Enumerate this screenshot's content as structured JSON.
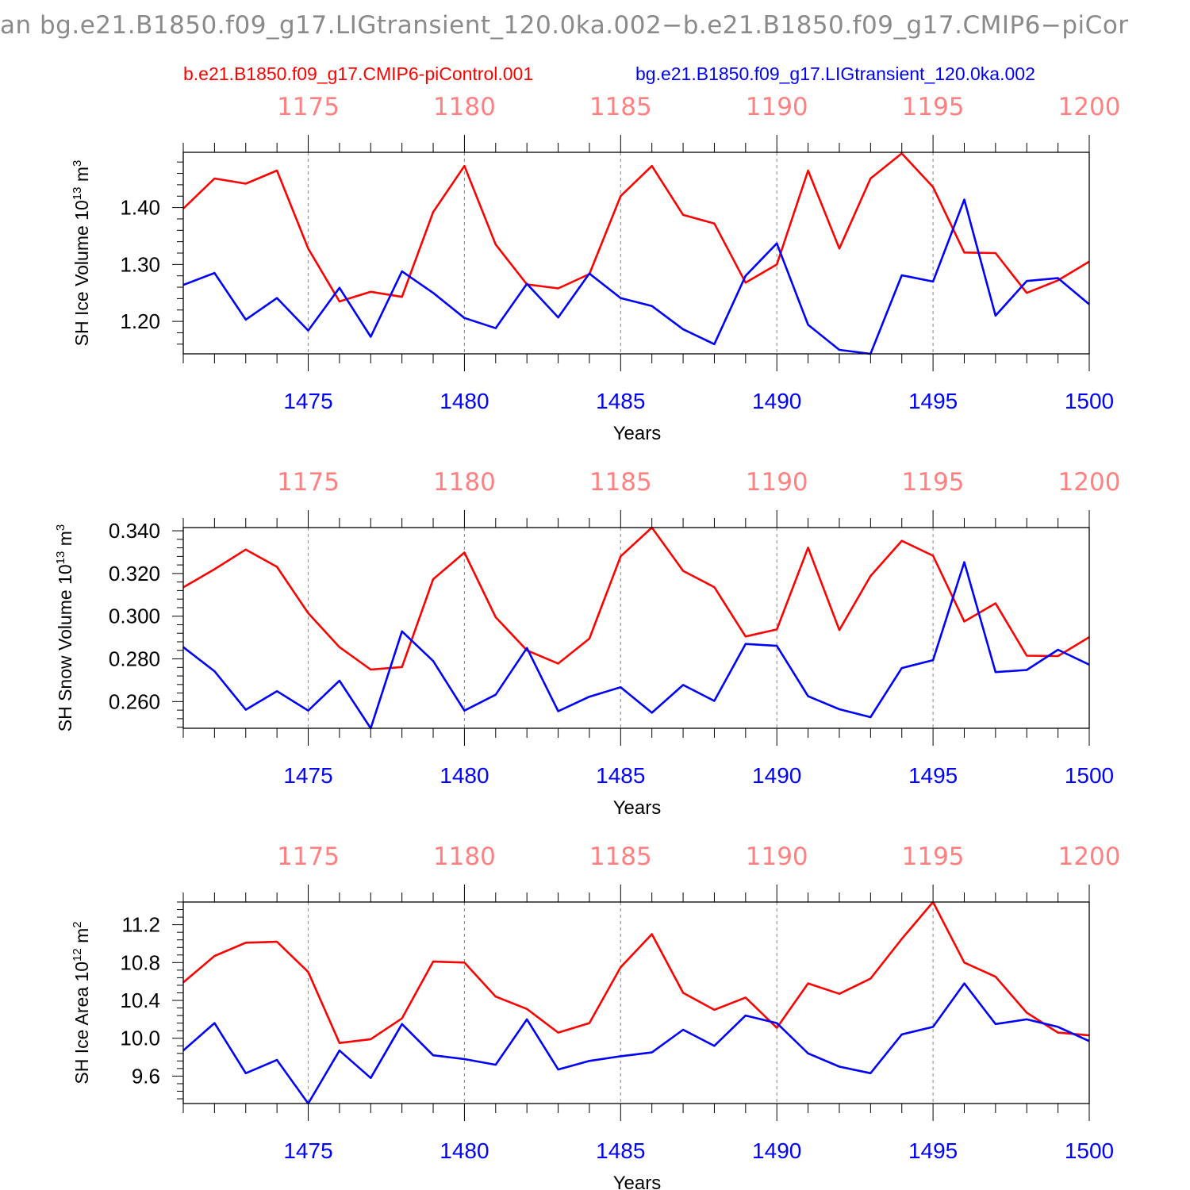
{
  "page_title": "an bg.e21.B1850.f09_g17.LIGtransient_120.0ka.002−b.e21.B1850.f09_g17.CMIP6−piCor",
  "legend": {
    "red_label": "b.e21.B1850.f09_g17.CMIP6-piControl.001",
    "blue_label": "bg.e21.B1850.f09_g17.LIGtransient_120.0ka.002"
  },
  "colors": {
    "red": "#ff0000",
    "blue": "#0000ff",
    "top_ticks": "#ff8080",
    "bottom_ticks": "#0000ff",
    "grid": "#999999"
  },
  "chart_data": [
    {
      "type": "line",
      "ylabel": "SH Ice Volume 10^13 m^3",
      "ylabel_main": "SH Ice Volume 10",
      "ylabel_exp": "13",
      "ylabel_unit": "m",
      "ylabel_unit_exp": "3",
      "xlabel": "Years",
      "xlim": [
        1471,
        1500
      ],
      "ylim": [
        1.143,
        1.497
      ],
      "yticks": [
        1.2,
        1.3,
        1.4
      ],
      "ytick_labels": [
        "1.20",
        "1.30",
        "1.40"
      ],
      "ymajor_step": 0.1,
      "yminor_step": 0.02,
      "xticks_bottom": [
        "1475",
        "1480",
        "1485",
        "1490",
        "1495",
        "1500"
      ],
      "xticks_top": [
        "1175",
        "1180",
        "1185",
        "1190",
        "1195",
        "1200"
      ],
      "x": [
        1471,
        1472,
        1473,
        1474,
        1475,
        1476,
        1477,
        1478,
        1479,
        1480,
        1481,
        1482,
        1483,
        1484,
        1485,
        1486,
        1487,
        1488,
        1489,
        1490,
        1491,
        1492,
        1493,
        1494,
        1495,
        1496,
        1497,
        1498,
        1499,
        1500
      ],
      "series": [
        {
          "name": "b.e21.B1850.f09_g17.CMIP6-piControl.001",
          "color": "#ff0000",
          "values": [
            1.398,
            1.451,
            1.442,
            1.465,
            1.328,
            1.235,
            1.252,
            1.243,
            1.392,
            1.473,
            1.335,
            1.265,
            1.258,
            1.283,
            1.42,
            1.473,
            1.387,
            1.372,
            1.268,
            1.3,
            1.465,
            1.328,
            1.451,
            1.495,
            1.436,
            1.321,
            1.32,
            1.25,
            1.272,
            1.305
          ]
        },
        {
          "name": "bg.e21.B1850.f09_g17.LIGtransient_120.0ka.002",
          "color": "#0000ff",
          "values": [
            1.264,
            1.285,
            1.203,
            1.241,
            1.184,
            1.259,
            1.173,
            1.288,
            1.25,
            1.206,
            1.188,
            1.266,
            1.207,
            1.284,
            1.241,
            1.227,
            1.186,
            1.16,
            1.28,
            1.337,
            1.194,
            1.15,
            1.143,
            1.281,
            1.27,
            1.414,
            1.21,
            1.271,
            1.276,
            1.23
          ]
        }
      ]
    },
    {
      "type": "line",
      "ylabel": "SH Snow Volume 10^13 m^3",
      "ylabel_main": "SH Snow Volume 10",
      "ylabel_exp": "13",
      "ylabel_unit": "m",
      "ylabel_unit_exp": "3",
      "xlabel": "Years",
      "xlim": [
        1471,
        1500
      ],
      "ylim": [
        0.2475,
        0.3415
      ],
      "yticks": [
        0.26,
        0.28,
        0.3,
        0.32,
        0.34
      ],
      "ytick_labels": [
        "0.260",
        "0.280",
        "0.300",
        "0.320",
        "0.340"
      ],
      "ymajor_step": 0.02,
      "yminor_step": 0.004,
      "xticks_bottom": [
        "1475",
        "1480",
        "1485",
        "1490",
        "1495",
        "1500"
      ],
      "xticks_top": [
        "1175",
        "1180",
        "1185",
        "1190",
        "1195",
        "1200"
      ],
      "x": [
        1471,
        1472,
        1473,
        1474,
        1475,
        1476,
        1477,
        1478,
        1479,
        1480,
        1481,
        1482,
        1483,
        1484,
        1485,
        1486,
        1487,
        1488,
        1489,
        1490,
        1491,
        1492,
        1493,
        1494,
        1495,
        1496,
        1497,
        1498,
        1499,
        1500
      ],
      "series": [
        {
          "name": "b.e21.B1850.f09_g17.CMIP6-piControl.001",
          "color": "#ff0000",
          "values": [
            0.3135,
            0.322,
            0.3312,
            0.3231,
            0.3014,
            0.2855,
            0.275,
            0.2762,
            0.3173,
            0.3298,
            0.2995,
            0.284,
            0.2778,
            0.2895,
            0.328,
            0.3415,
            0.3212,
            0.3136,
            0.2905,
            0.2938,
            0.3321,
            0.2935,
            0.3188,
            0.3353,
            0.3283,
            0.2975,
            0.306,
            0.2815,
            0.2813,
            0.2902
          ]
        },
        {
          "name": "bg.e21.B1850.f09_g17.LIGtransient_120.0ka.002",
          "color": "#0000ff",
          "values": [
            0.2855,
            0.2742,
            0.2562,
            0.2649,
            0.2558,
            0.2698,
            0.2475,
            0.2929,
            0.279,
            0.2558,
            0.2632,
            0.2851,
            0.2555,
            0.2623,
            0.2667,
            0.2548,
            0.2678,
            0.2603,
            0.287,
            0.2861,
            0.2625,
            0.2564,
            0.2527,
            0.2757,
            0.2794,
            0.3253,
            0.2738,
            0.2748,
            0.2843,
            0.2773
          ]
        }
      ]
    },
    {
      "type": "line",
      "ylabel": "SH Ice Area 10^12 m^2",
      "ylabel_main": "SH Ice Area 10",
      "ylabel_exp": "12",
      "ylabel_unit": "m",
      "ylabel_unit_exp": "2",
      "xlabel": "Years",
      "xlim": [
        1471,
        1500
      ],
      "ylim": [
        9.31,
        11.44
      ],
      "yticks": [
        9.6,
        10.0,
        10.4,
        10.8,
        11.2
      ],
      "ytick_labels": [
        "9.6",
        "10.0",
        "10.4",
        "10.8",
        "11.2"
      ],
      "ymajor_step": 0.4,
      "yminor_step": 0.08,
      "xticks_bottom": [
        "1475",
        "1480",
        "1485",
        "1490",
        "1495",
        "1500"
      ],
      "xticks_top": [
        "1175",
        "1180",
        "1185",
        "1190",
        "1195",
        "1200"
      ],
      "x": [
        1471,
        1472,
        1473,
        1474,
        1475,
        1476,
        1477,
        1478,
        1479,
        1480,
        1481,
        1482,
        1483,
        1484,
        1485,
        1486,
        1487,
        1488,
        1489,
        1490,
        1491,
        1492,
        1493,
        1494,
        1495,
        1496,
        1497,
        1498,
        1499,
        1500
      ],
      "series": [
        {
          "name": "b.e21.B1850.f09_g17.CMIP6-piControl.001",
          "color": "#ff0000",
          "values": [
            10.59,
            10.87,
            11.01,
            11.02,
            10.7,
            9.95,
            9.99,
            10.21,
            10.81,
            10.8,
            10.44,
            10.31,
            10.06,
            10.16,
            10.75,
            11.1,
            10.48,
            10.3,
            10.43,
            10.11,
            10.58,
            10.47,
            10.63,
            11.05,
            11.44,
            10.8,
            10.65,
            10.27,
            10.06,
            10.03
          ]
        },
        {
          "name": "bg.e21.B1850.f09_g17.LIGtransient_120.0ka.002",
          "color": "#0000ff",
          "values": [
            9.87,
            10.16,
            9.63,
            9.77,
            9.31,
            9.87,
            9.58,
            10.15,
            9.82,
            9.78,
            9.72,
            10.2,
            9.67,
            9.76,
            9.81,
            9.85,
            10.09,
            9.92,
            10.24,
            10.16,
            9.84,
            9.7,
            9.63,
            10.04,
            10.12,
            10.58,
            10.15,
            10.2,
            10.12,
            9.97
          ]
        }
      ]
    }
  ]
}
